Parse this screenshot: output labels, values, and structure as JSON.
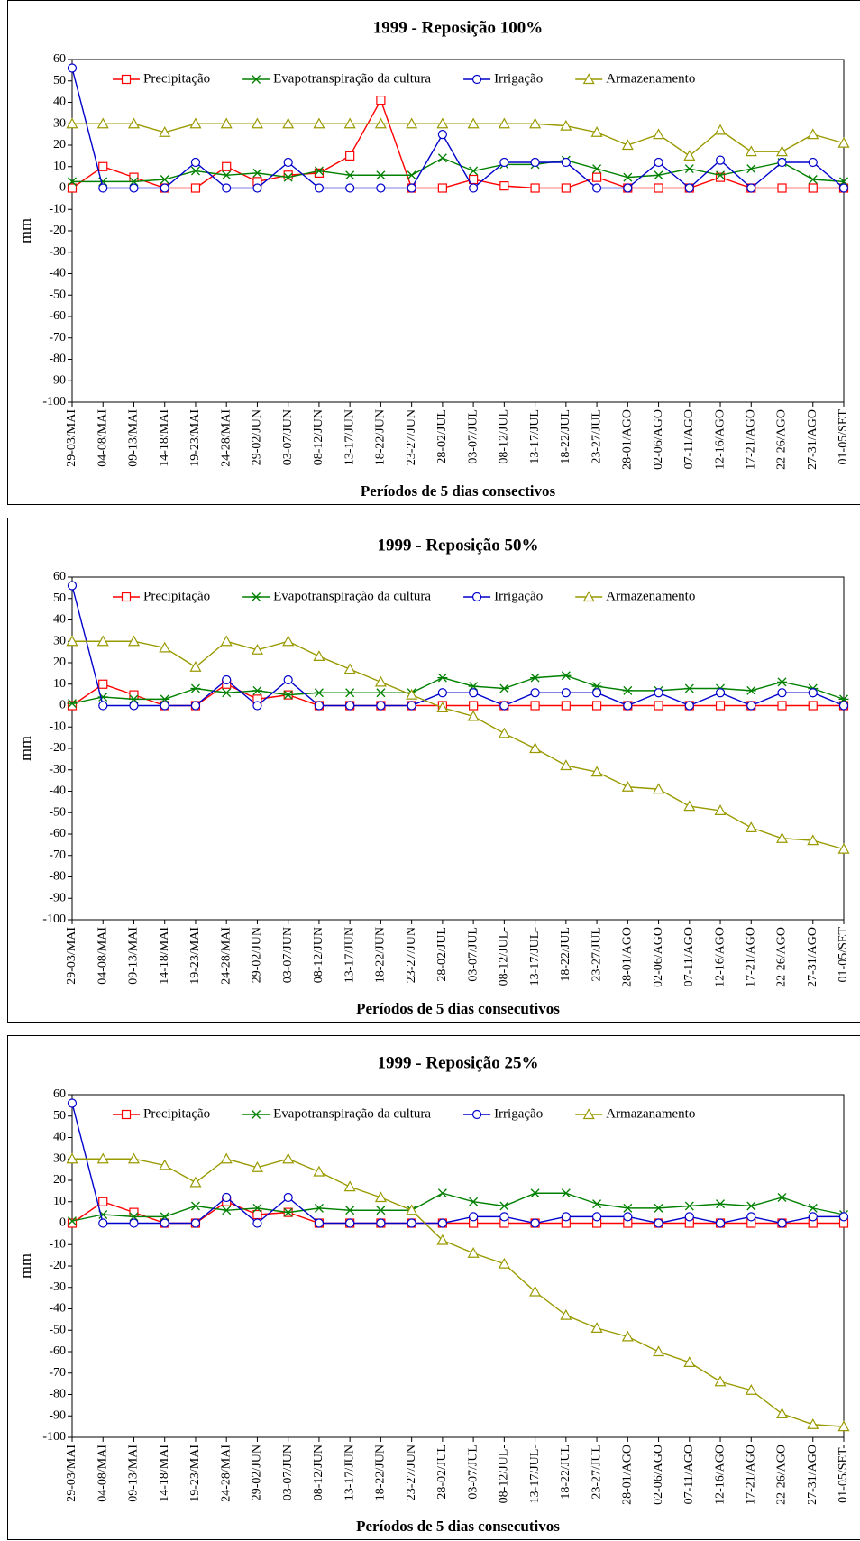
{
  "chart_data": [
    {
      "type": "line",
      "title": "1999 - Reposição 100%",
      "x_label": "Períodos de 5 dias consectivos",
      "y_label": "mm",
      "categories": [
        "29-03/MAI",
        "04-08/MAI",
        "09-13/MAI",
        "14-18/MAI",
        "19-23/MAI",
        "24-28/MAI",
        "29-02/JUN",
        "03-07/JUN",
        "08-12/JUN",
        "13-17/JUN",
        "18-22/JUN",
        "23-27/JUN",
        "28-02/JUL",
        "03-07/JUL",
        "08-12/JUL",
        "13-17/JUL",
        "18-22/JUL",
        "23-27/JUL",
        "28-01/AGO",
        "02-06/AGO",
        "07-11/AGO",
        "12-16/AGO",
        "17-21/AGO",
        "22-26/AGO",
        "27-31/AGO",
        "01-05/SET"
      ],
      "ylim": [
        -100,
        60
      ],
      "yticks": [
        60,
        50,
        40,
        30,
        20,
        10,
        0,
        -10,
        -20,
        -30,
        -40,
        -50,
        -60,
        -70,
        -80,
        -90,
        -100
      ],
      "series": [
        {
          "name": "Precipitação",
          "color": "#ff0000",
          "marker": "square",
          "values": [
            0,
            10,
            5,
            0,
            0,
            10,
            3,
            6,
            7,
            15,
            41,
            0,
            0,
            4,
            1,
            0,
            0,
            5,
            0,
            0,
            0,
            5,
            0,
            0,
            0,
            0
          ]
        },
        {
          "name": "Evapotranspiração da cultura",
          "color": "#008000",
          "marker": "x",
          "values": [
            3,
            3,
            3,
            4,
            8,
            6,
            7,
            5,
            8,
            6,
            6,
            6,
            14,
            8,
            11,
            11,
            13,
            9,
            5,
            6,
            9,
            6,
            9,
            12,
            4,
            3
          ]
        },
        {
          "name": "Irrigação",
          "color": "#0000cc",
          "marker": "circle",
          "values": [
            56,
            0,
            0,
            0,
            12,
            0,
            0,
            12,
            0,
            0,
            0,
            0,
            25,
            0,
            12,
            12,
            12,
            0,
            0,
            12,
            0,
            13,
            0,
            12,
            12,
            0
          ]
        },
        {
          "name": "Armazenamento",
          "color": "#999900",
          "marker": "triangle",
          "values": [
            30,
            30,
            30,
            26,
            30,
            30,
            30,
            30,
            30,
            30,
            30,
            30,
            30,
            30,
            30,
            30,
            29,
            26,
            20,
            25,
            15,
            27,
            17,
            17,
            25,
            21
          ]
        }
      ]
    },
    {
      "type": "line",
      "title": "1999 - Reposição 50%",
      "x_label": "Períodos de 5 dias consecutivos",
      "y_label": "mm",
      "categories": [
        "29-03/MAI",
        "04-08/MAI",
        "09-13/MAI",
        "14-18/MAI",
        "19-23/MAI",
        "24-28/MAI",
        "29-02/JUN",
        "03-07/JUN",
        "08-12/JUN",
        "13-17/JUN",
        "18-22/JUN",
        "23-27/JUN",
        "28-02/JUL",
        "03-07/JUL",
        "08-12/JUL-",
        "13-17/JUL-",
        "18-22/JUL",
        "23-27/JUL",
        "28-01/AGO",
        "02-06/AGO",
        "07-11/AGO",
        "12-16/AGO",
        "17-21/AGO",
        "22-26/AGO",
        "27-31/AGO",
        "01-05/SET"
      ],
      "ylim": [
        -100,
        60
      ],
      "yticks": [
        60,
        50,
        40,
        30,
        20,
        10,
        0,
        -10,
        -20,
        -30,
        -40,
        -50,
        -60,
        -70,
        -80,
        -90,
        -100
      ],
      "series": [
        {
          "name": "Precipitação",
          "color": "#ff0000",
          "marker": "square",
          "values": [
            0,
            10,
            5,
            0,
            0,
            10,
            3,
            5,
            0,
            0,
            0,
            0,
            0,
            0,
            0,
            0,
            0,
            0,
            0,
            0,
            0,
            0,
            0,
            0,
            0,
            0
          ]
        },
        {
          "name": "Evapotranspiração da cultura",
          "color": "#008000",
          "marker": "star",
          "values": [
            1,
            4,
            3,
            3,
            8,
            6,
            7,
            5,
            6,
            6,
            6,
            6,
            13,
            9,
            8,
            13,
            14,
            9,
            7,
            7,
            8,
            8,
            7,
            11,
            8,
            3
          ]
        },
        {
          "name": "Irrigação",
          "color": "#0000cc",
          "marker": "circle",
          "values": [
            56,
            0,
            0,
            0,
            0,
            12,
            0,
            12,
            0,
            0,
            0,
            0,
            6,
            6,
            0,
            6,
            6,
            6,
            0,
            6,
            0,
            6,
            0,
            6,
            6,
            0
          ]
        },
        {
          "name": "Armazenamento",
          "color": "#999900",
          "marker": "triangle",
          "values": [
            30,
            30,
            30,
            27,
            18,
            30,
            26,
            30,
            23,
            17,
            11,
            5,
            -1,
            -5,
            -13,
            -20,
            -28,
            -31,
            -38,
            -39,
            -47,
            -49,
            -57,
            -62,
            -63,
            -67
          ]
        }
      ]
    },
    {
      "type": "line",
      "title": "1999 - Reposição 25%",
      "x_label": "Períodos de 5 dias consecutivos",
      "y_label": "mm",
      "categories": [
        "29-03/MAI",
        "04-08/MAI",
        "09-13/MAI",
        "14-18/MAI",
        "19-23/MAI",
        "24-28/MAI",
        "29-02/JUN",
        "03-07/JUN",
        "08-12/JUN",
        "13-17/JUN",
        "18-22/JUN",
        "23-27/JUN",
        "28-02/JUL",
        "03-07/JUL",
        "08-12/JUL-",
        "13-17/JUL-",
        "18-22/JUL",
        "23-27/JUL",
        "28-01/AGO",
        "02-06/AGO",
        "07-11/AGO",
        "12-16/AGO",
        "17-21/AGO",
        "22-26/AGO",
        "27-31/AGO",
        "01-05/SET-"
      ],
      "ylim": [
        -100,
        60
      ],
      "yticks": [
        60,
        50,
        40,
        30,
        20,
        10,
        0,
        -10,
        -20,
        -30,
        -40,
        -50,
        -60,
        -70,
        -80,
        -90,
        -100
      ],
      "series": [
        {
          "name": "Precipitação",
          "color": "#ff0000",
          "marker": "square",
          "values": [
            0,
            10,
            5,
            0,
            0,
            10,
            4,
            5,
            0,
            0,
            0,
            0,
            0,
            0,
            0,
            0,
            0,
            0,
            0,
            0,
            0,
            0,
            0,
            0,
            0,
            0
          ]
        },
        {
          "name": "Evapotranspiração da cultura",
          "color": "#008000",
          "marker": "x",
          "values": [
            1,
            4,
            3,
            3,
            8,
            6,
            7,
            5,
            7,
            6,
            6,
            6,
            14,
            10,
            8,
            14,
            14,
            9,
            7,
            7,
            8,
            9,
            8,
            12,
            7,
            4
          ]
        },
        {
          "name": "Irrigação",
          "color": "#0000cc",
          "marker": "circle",
          "values": [
            56,
            0,
            0,
            0,
            0,
            12,
            0,
            12,
            0,
            0,
            0,
            0,
            0,
            3,
            3,
            0,
            3,
            3,
            3,
            0,
            3,
            0,
            3,
            0,
            3,
            3
          ]
        },
        {
          "name": "Armazanamento",
          "color": "#999900",
          "marker": "triangle",
          "values": [
            30,
            30,
            30,
            27,
            19,
            30,
            26,
            30,
            24,
            17,
            12,
            6,
            -8,
            -14,
            -19,
            -32,
            -43,
            -49,
            -53,
            -60,
            -65,
            -74,
            -78,
            -89,
            -94,
            -95
          ]
        }
      ]
    }
  ]
}
